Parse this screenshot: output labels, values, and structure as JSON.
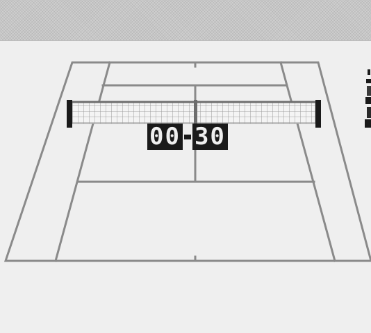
{
  "scoreboard": {
    "left_score": "00",
    "right_score": "30"
  },
  "colors": {
    "background": "#efefef",
    "court_lines": "#8a8a8a",
    "net_mesh": "#9a9a9a",
    "net_post": "#1a1a1a",
    "scoreboard_bg": "#1a1a1a",
    "top_bar": "#cfcfcf"
  },
  "icons": {
    "player": "player-sprite-icon",
    "net": "tennis-net"
  }
}
